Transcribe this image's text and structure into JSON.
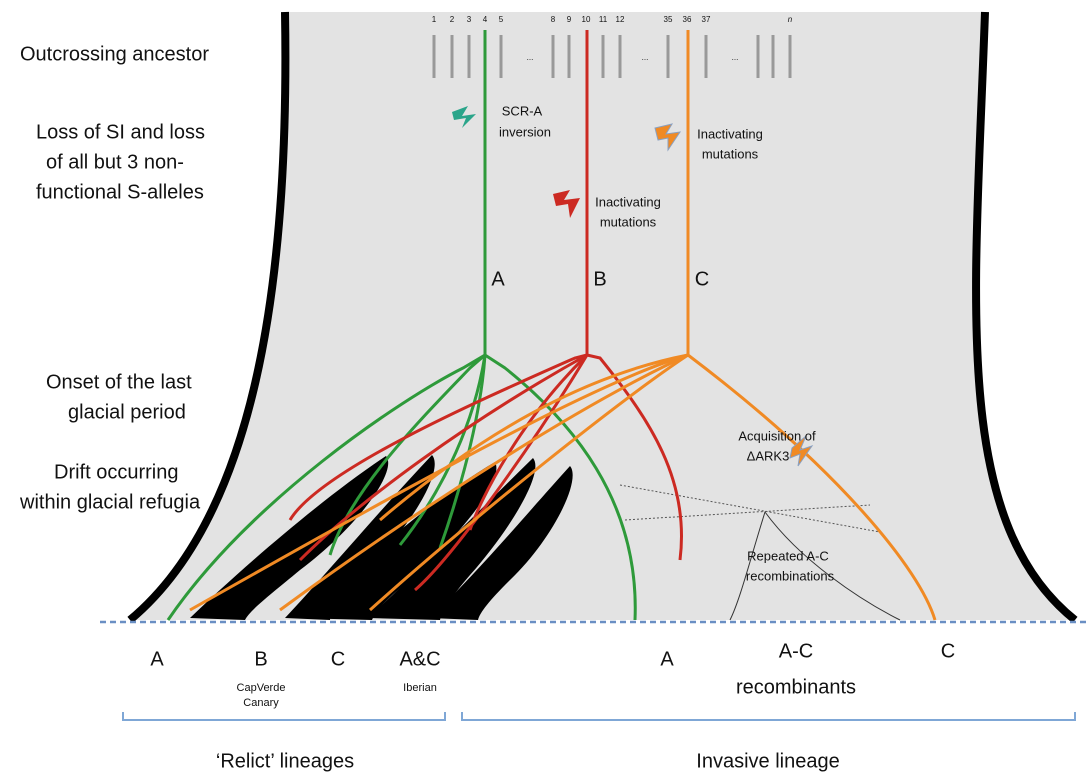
{
  "stages": [
    {
      "lines": [
        "Outcrossing ancestor"
      ]
    },
    {
      "lines": [
        "Loss of SI and loss",
        "of all but 3 non-",
        "functional S-alleles"
      ]
    },
    {
      "lines": [
        "Onset of the last",
        "glacial period"
      ]
    },
    {
      "lines": [
        "Drift occurring",
        "within glacial refugia"
      ]
    }
  ],
  "allele_numbers": [
    "1",
    "2",
    "3",
    "4",
    "5",
    "8",
    "9",
    "10",
    "11",
    "12",
    "35",
    "36",
    "37",
    "n"
  ],
  "ellipsis": "...",
  "lineage_letters": [
    "A",
    "B",
    "C"
  ],
  "annotations": {
    "scr_a": [
      "SCR-A",
      "inversion"
    ],
    "inactivating_b": [
      "Inactivating",
      "mutations"
    ],
    "inactivating_c": [
      "Inactivating",
      "mutations"
    ],
    "ark3": [
      "Acquisition of",
      "ΔARK3"
    ],
    "recombination": [
      "Repeated A-C",
      "recombinations"
    ]
  },
  "bottom_labels": {
    "relict": [
      "A",
      "B",
      "C",
      "A&C"
    ],
    "relict_sublabels": {
      "B": [
        "CapVerde",
        "Canary"
      ],
      "A&C": [
        "Iberian"
      ]
    },
    "invasive": [
      "A",
      "A-C",
      "recombinants",
      "C"
    ]
  },
  "groups": [
    "‘Relict’ lineages",
    "Invasive lineage"
  ]
}
